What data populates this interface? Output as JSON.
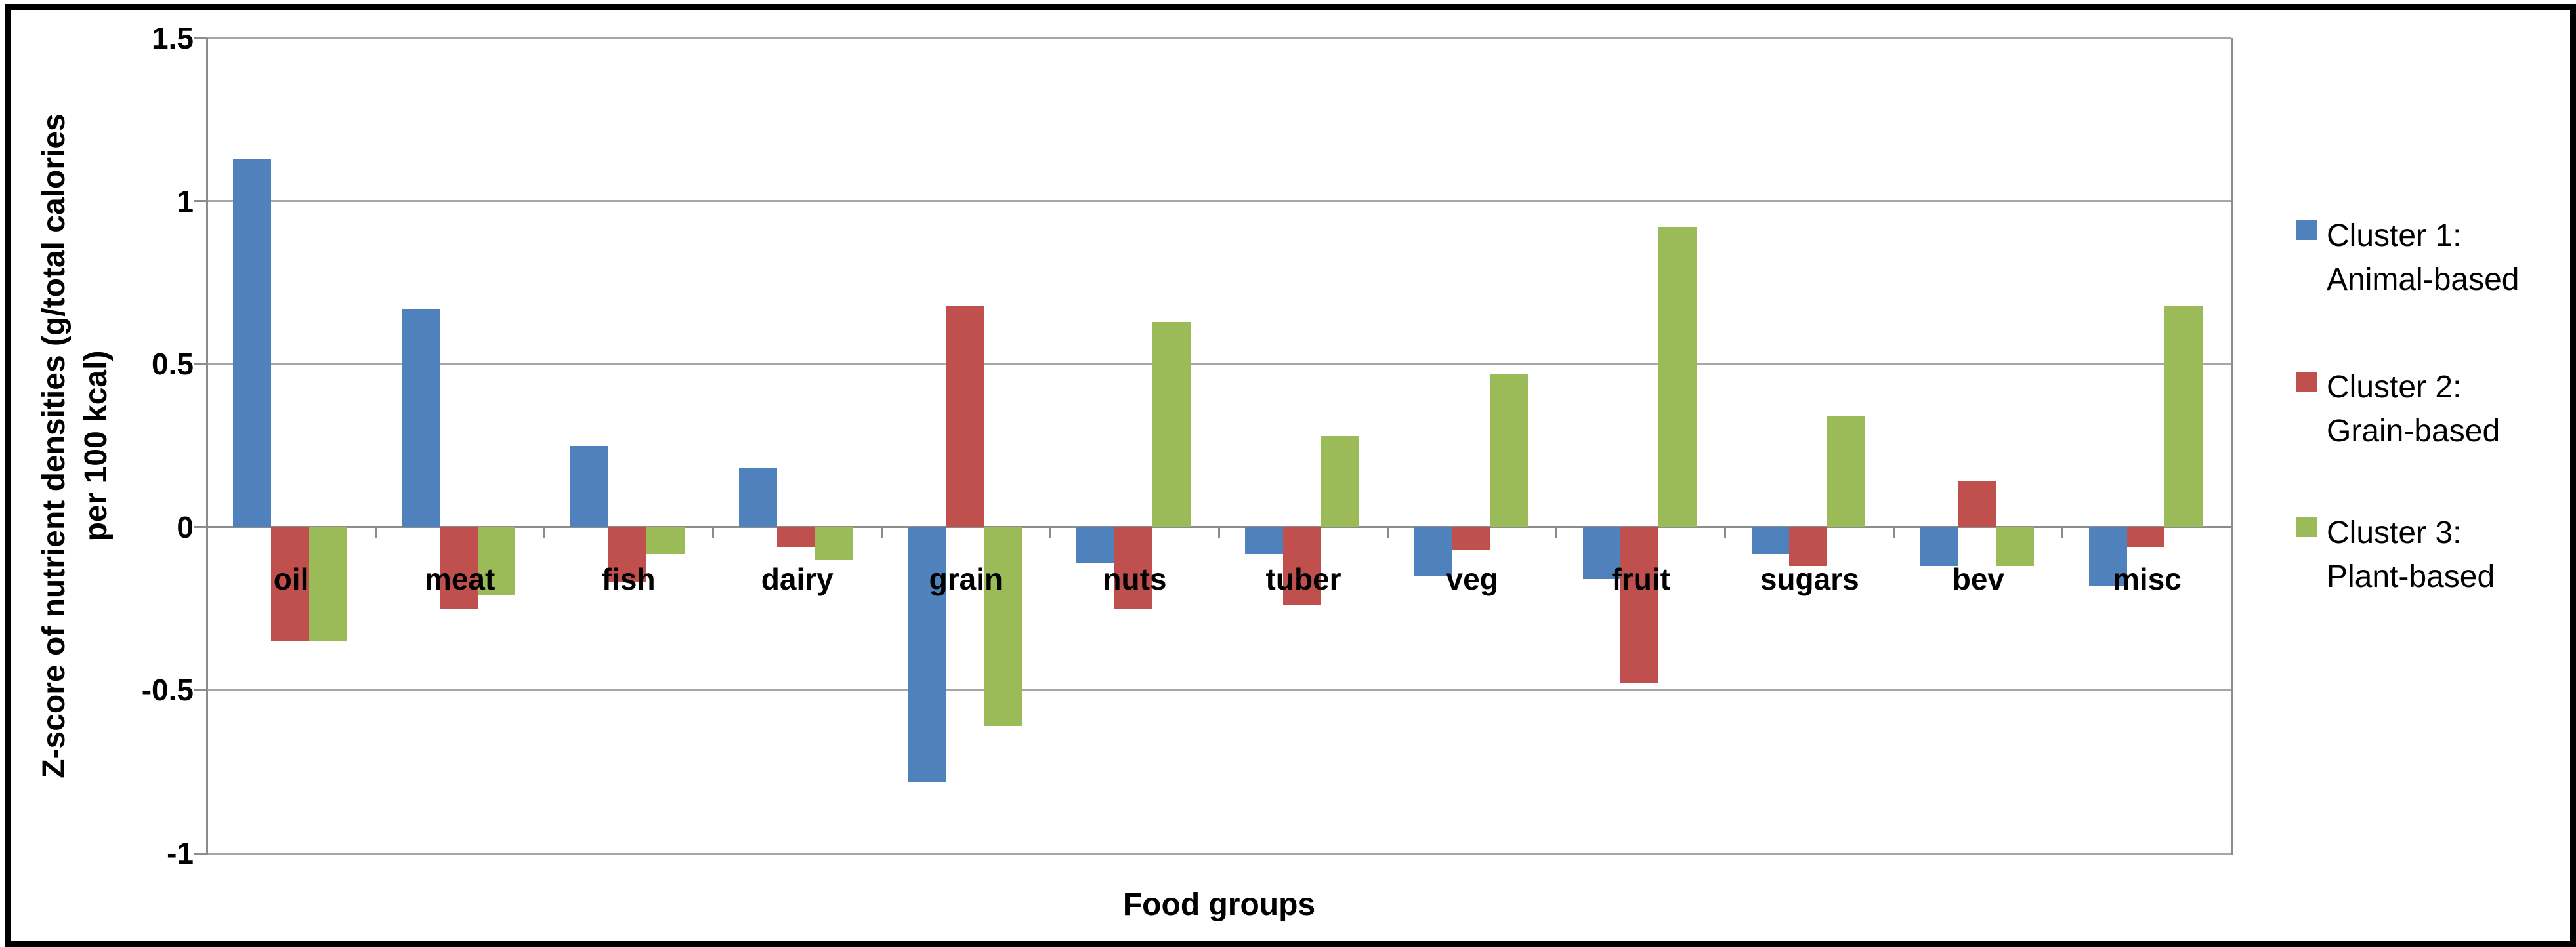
{
  "chart_data": {
    "type": "bar",
    "title": "",
    "xlabel": "Food groups",
    "ylabel": "Z-score of nutrient densities (g/total calories per 100 kcal)",
    "ylabel_lines": [
      "Z-score of nutrient densities (g/total calories",
      "per 100 kcal)"
    ],
    "categories": [
      "oil",
      "meat",
      "fish",
      "dairy",
      "grain",
      "nuts",
      "tuber",
      "veg",
      "fruit",
      "sugars",
      "bev",
      "misc"
    ],
    "series": [
      {
        "name": "Cluster 1: Animal-based",
        "legend_lines": [
          "Cluster 1:",
          "Animal-based"
        ],
        "color": "#4F81BD",
        "values": [
          1.13,
          0.67,
          0.25,
          0.18,
          -0.78,
          -0.11,
          -0.08,
          -0.15,
          -0.16,
          -0.08,
          -0.12,
          -0.18
        ]
      },
      {
        "name": "Cluster 2: Grain-based",
        "legend_lines": [
          "Cluster 2:",
          "Grain-based"
        ],
        "color": "#C0504D",
        "values": [
          -0.35,
          -0.25,
          -0.17,
          -0.06,
          0.68,
          -0.25,
          -0.24,
          -0.07,
          -0.48,
          -0.12,
          0.14,
          -0.06
        ]
      },
      {
        "name": "Cluster 3: Plant-based",
        "legend_lines": [
          "Cluster 3:",
          "Plant-based"
        ],
        "color": "#9BBB59",
        "values": [
          -0.35,
          -0.21,
          -0.08,
          -0.1,
          -0.61,
          0.63,
          0.28,
          0.47,
          0.92,
          0.34,
          -0.12,
          0.68
        ]
      }
    ],
    "y_ticks": [
      1.5,
      1,
      0.5,
      0,
      -0.5,
      -1
    ],
    "y_tick_labels": [
      "1.5",
      "1",
      "0.5",
      "0",
      "-0.5",
      "-1"
    ],
    "ylim": [
      -1,
      1.5
    ],
    "grid": true,
    "legend_position": "right"
  },
  "style": {
    "gridline_color": "#a6a6a6",
    "axis_color": "#8c8c8c",
    "border_color": "#000000",
    "background": "#ffffff"
  }
}
